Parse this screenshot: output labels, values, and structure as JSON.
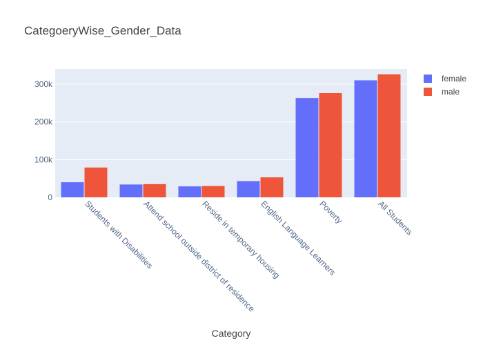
{
  "chart_data": {
    "type": "bar",
    "title": "CategoeryWise_Gender_Data",
    "xlabel": "Category",
    "ylabel": "",
    "categories": [
      "Students with Disabilities",
      "Attend school outside district of residence",
      "Reside in temporary housing",
      "English Language Learners",
      "Poverty",
      "All Students"
    ],
    "series": [
      {
        "name": "female",
        "values": [
          40000,
          34000,
          29000,
          43000,
          263000,
          310000
        ]
      },
      {
        "name": "male",
        "values": [
          79000,
          35000,
          30000,
          53000,
          276000,
          326000
        ]
      }
    ],
    "ylim": [
      0,
      340000
    ],
    "yticks": [
      0,
      100000,
      200000,
      300000
    ],
    "ytick_labels": [
      "0",
      "100k",
      "200k",
      "300k"
    ],
    "grid": true,
    "legend_position": "top-right",
    "colors": {
      "female": "#636efa",
      "male": "#ef553b",
      "plot_bg": "#e5ecf6",
      "grid": "#ffffff"
    }
  }
}
